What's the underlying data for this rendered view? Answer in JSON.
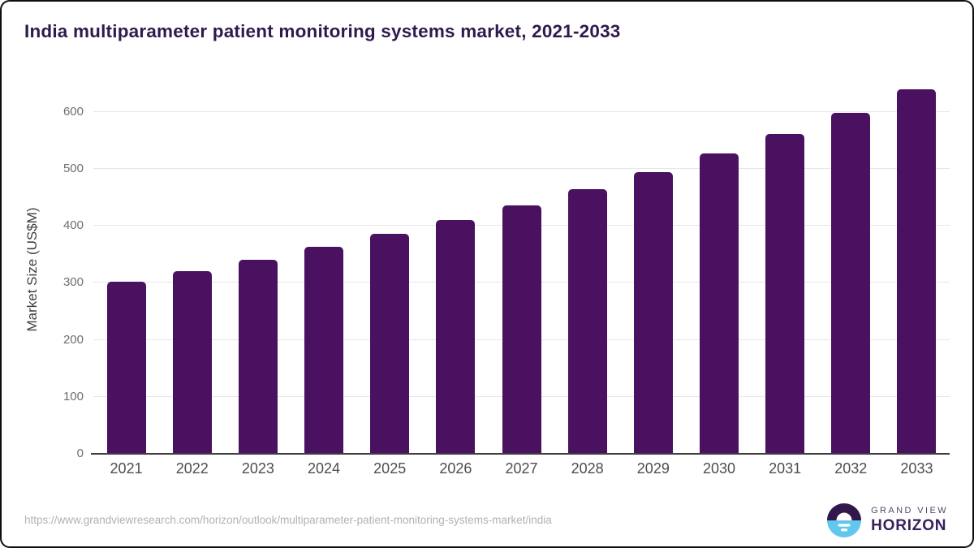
{
  "title": "India multiparameter patient monitoring systems market, 2021-2033",
  "chart_data": {
    "type": "bar",
    "categories": [
      "2021",
      "2022",
      "2023",
      "2024",
      "2025",
      "2026",
      "2027",
      "2028",
      "2029",
      "2030",
      "2031",
      "2032",
      "2033"
    ],
    "values": [
      302,
      320,
      341,
      363,
      386,
      410,
      436,
      464,
      494,
      527,
      561,
      598,
      639
    ],
    "title": "India multiparameter patient monitoring systems market, 2021-2033",
    "xlabel": "",
    "ylabel": "Market Size (US$M)",
    "ylim": [
      0,
      645
    ],
    "yticks": [
      0,
      100,
      200,
      300,
      400,
      500,
      600
    ],
    "grid": true,
    "legend": "none",
    "bar_color": "#4a1160"
  },
  "footer": {
    "source_url": "https://www.grandviewresearch.com/horizon/outlook/multiparameter-patient-monitoring-systems-market/india",
    "logo": {
      "line1": "GRAND VIEW",
      "line2": "HORIZON"
    }
  },
  "colors": {
    "bar": "#4a1160",
    "title_text": "#2e1a4d",
    "axis_label": "#4d4d4d",
    "tick_label": "#6e6e6e",
    "gridline": "#e6e6e6",
    "axis_line": "#3f3f3f",
    "url_text": "#b3b1b1",
    "logo_blue": "#62c7ee",
    "logo_purple": "#32174d",
    "frame_border": "#0d0d0d"
  }
}
